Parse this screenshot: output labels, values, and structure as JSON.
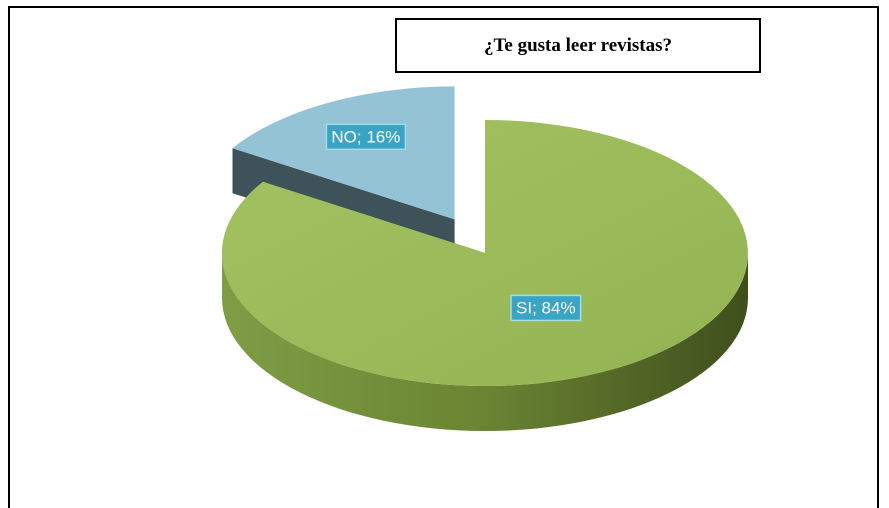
{
  "chart_data": {
    "type": "pie",
    "title": "¿Te gusta leer revistas?",
    "categories": [
      "SI",
      "NO"
    ],
    "values": [
      84,
      16
    ],
    "value_labels": [
      "SI; 84%",
      "NO; 16%"
    ],
    "colors": [
      "#9bbb59",
      "#93c3d4"
    ]
  }
}
